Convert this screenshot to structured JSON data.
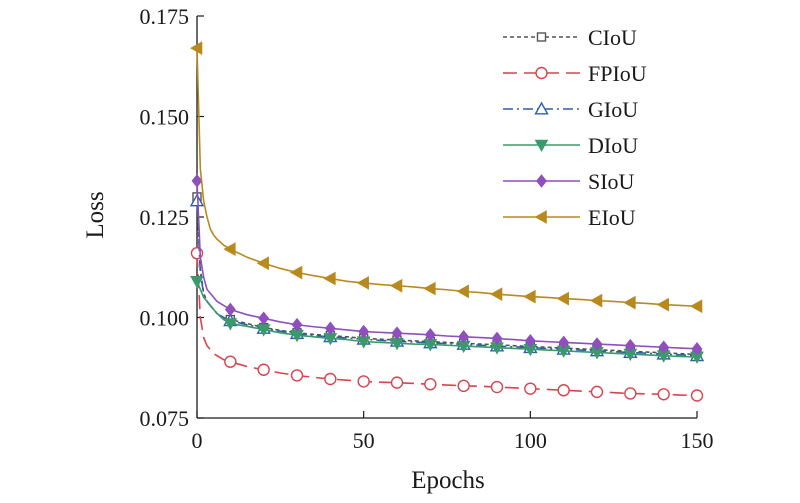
{
  "chart_data": {
    "type": "line",
    "title": "",
    "xlabel": "Epochs",
    "ylabel": "Loss",
    "xlim": [
      0,
      150
    ],
    "ylim": [
      0.075,
      0.175
    ],
    "xticks": [
      0,
      50,
      100,
      150
    ],
    "xtick_labels": [
      "0",
      "50",
      "100",
      "150"
    ],
    "yticks": [
      0.075,
      0.1,
      0.125,
      0.15,
      0.175
    ],
    "ytick_labels": [
      "0.075",
      "0.100",
      "0.125",
      "0.150",
      "0.175"
    ],
    "grid": false,
    "legend_position": "top-right",
    "marker_x": [
      0,
      10,
      20,
      30,
      40,
      50,
      60,
      70,
      80,
      90,
      100,
      110,
      120,
      130,
      140,
      150
    ],
    "series": [
      {
        "name": "CIoU",
        "color": "#555555",
        "dash": "dashed",
        "marker": "square-open",
        "x": [
          0,
          1,
          2,
          3,
          4,
          5,
          6,
          8,
          10,
          15,
          20,
          25,
          30,
          35,
          40,
          45,
          50,
          55,
          60,
          65,
          70,
          75,
          80,
          85,
          90,
          95,
          100,
          105,
          110,
          115,
          120,
          125,
          130,
          135,
          140,
          145,
          150
        ],
        "y": [
          0.13,
          0.112,
          0.106,
          0.104,
          0.103,
          0.102,
          0.101,
          0.1,
          0.0995,
          0.0985,
          0.0975,
          0.0968,
          0.0962,
          0.0958,
          0.0955,
          0.0952,
          0.0948,
          0.0946,
          0.0944,
          0.0942,
          0.094,
          0.0938,
          0.0936,
          0.0934,
          0.0932,
          0.093,
          0.0928,
          0.0926,
          0.0924,
          0.0922,
          0.092,
          0.0918,
          0.0916,
          0.0914,
          0.0912,
          0.091,
          0.0908
        ]
      },
      {
        "name": "FPIoU",
        "color": "#d9434e",
        "dash": "longdash",
        "marker": "circle-open",
        "x": [
          0,
          1,
          2,
          3,
          4,
          5,
          6,
          8,
          10,
          15,
          20,
          25,
          30,
          35,
          40,
          45,
          50,
          55,
          60,
          65,
          70,
          75,
          80,
          85,
          90,
          95,
          100,
          105,
          110,
          115,
          120,
          125,
          130,
          135,
          140,
          145,
          150
        ],
        "y": [
          0.116,
          0.1,
          0.095,
          0.093,
          0.092,
          0.091,
          0.0905,
          0.0895,
          0.089,
          0.0878,
          0.087,
          0.0862,
          0.0856,
          0.0851,
          0.0847,
          0.0844,
          0.0841,
          0.0839,
          0.0838,
          0.0836,
          0.0834,
          0.0832,
          0.083,
          0.0829,
          0.0827,
          0.0825,
          0.0823,
          0.0821,
          0.0819,
          0.0817,
          0.0815,
          0.0813,
          0.0811,
          0.081,
          0.0809,
          0.0807,
          0.0806
        ]
      },
      {
        "name": "GIoU",
        "color": "#2f5fa5",
        "dash": "dashdot",
        "marker": "triangle-up-open",
        "x": [
          0,
          1,
          2,
          3,
          4,
          5,
          6,
          8,
          10,
          15,
          20,
          25,
          30,
          35,
          40,
          45,
          50,
          55,
          60,
          65,
          70,
          75,
          80,
          85,
          90,
          95,
          100,
          105,
          110,
          115,
          120,
          125,
          130,
          135,
          140,
          145,
          150
        ],
        "y": [
          0.129,
          0.111,
          0.106,
          0.104,
          0.103,
          0.102,
          0.101,
          0.1,
          0.0992,
          0.0982,
          0.0973,
          0.0966,
          0.096,
          0.0955,
          0.0952,
          0.0949,
          0.0946,
          0.0943,
          0.0941,
          0.0939,
          0.0937,
          0.0935,
          0.0933,
          0.0931,
          0.0929,
          0.0927,
          0.0925,
          0.0923,
          0.0921,
          0.0919,
          0.0917,
          0.0915,
          0.0913,
          0.0911,
          0.0909,
          0.0907,
          0.0905
        ]
      },
      {
        "name": "DIoU",
        "color": "#3b9a6b",
        "dash": "solid",
        "marker": "triangle-down-filled",
        "x": [
          0,
          1,
          2,
          3,
          4,
          5,
          6,
          8,
          10,
          15,
          20,
          25,
          30,
          35,
          40,
          45,
          50,
          55,
          60,
          65,
          70,
          75,
          80,
          85,
          90,
          95,
          100,
          105,
          110,
          115,
          120,
          125,
          130,
          135,
          140,
          145,
          150
        ],
        "y": [
          0.109,
          0.107,
          0.105,
          0.104,
          0.103,
          0.102,
          0.101,
          0.0995,
          0.0985,
          0.0978,
          0.097,
          0.0962,
          0.0956,
          0.0952,
          0.0948,
          0.0945,
          0.094,
          0.0938,
          0.0936,
          0.0934,
          0.0933,
          0.0931,
          0.0929,
          0.0927,
          0.0925,
          0.0923,
          0.0921,
          0.0919,
          0.0917,
          0.0915,
          0.0913,
          0.0911,
          0.0909,
          0.0907,
          0.0905,
          0.0903,
          0.0902
        ]
      },
      {
        "name": "SIoU",
        "color": "#8f4fbf",
        "dash": "solid",
        "marker": "diamond-filled",
        "x": [
          0,
          1,
          2,
          3,
          4,
          5,
          6,
          8,
          10,
          15,
          20,
          25,
          30,
          35,
          40,
          45,
          50,
          55,
          60,
          65,
          70,
          75,
          80,
          85,
          90,
          95,
          100,
          105,
          110,
          115,
          120,
          125,
          130,
          135,
          140,
          145,
          150
        ],
        "y": [
          0.134,
          0.115,
          0.11,
          0.107,
          0.106,
          0.105,
          0.104,
          0.103,
          0.102,
          0.1007,
          0.0998,
          0.0989,
          0.0982,
          0.0977,
          0.0973,
          0.0969,
          0.0965,
          0.0963,
          0.0961,
          0.0959,
          0.0957,
          0.0954,
          0.0952,
          0.095,
          0.0948,
          0.0945,
          0.0942,
          0.094,
          0.0938,
          0.0936,
          0.0934,
          0.0932,
          0.093,
          0.0928,
          0.0926,
          0.0924,
          0.0922
        ]
      },
      {
        "name": "EIoU",
        "color": "#b88a1e",
        "dash": "solid",
        "marker": "triangle-left-filled",
        "x": [
          0,
          1,
          2,
          3,
          4,
          5,
          6,
          8,
          10,
          15,
          20,
          25,
          30,
          35,
          40,
          45,
          50,
          55,
          60,
          65,
          70,
          75,
          80,
          85,
          90,
          95,
          100,
          105,
          110,
          115,
          120,
          125,
          130,
          135,
          140,
          145,
          150
        ],
        "y": [
          0.167,
          0.137,
          0.129,
          0.125,
          0.122,
          0.1205,
          0.1195,
          0.118,
          0.117,
          0.115,
          0.1135,
          0.1122,
          0.1112,
          0.1104,
          0.1097,
          0.109,
          0.1086,
          0.1082,
          0.1079,
          0.1076,
          0.1072,
          0.1069,
          0.1065,
          0.1062,
          0.1058,
          0.1055,
          0.1052,
          0.105,
          0.1047,
          0.1045,
          0.1042,
          0.104,
          0.1037,
          0.1035,
          0.1032,
          0.103,
          0.1028
        ]
      }
    ]
  }
}
